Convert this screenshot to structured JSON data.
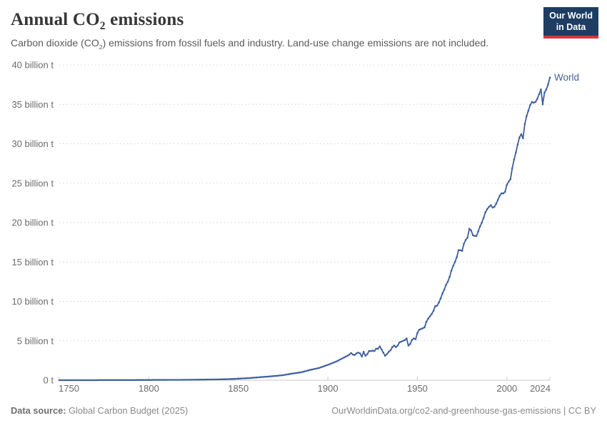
{
  "header": {
    "title_pre": "Annual CO",
    "title_sub": "2",
    "title_post": " emissions",
    "subtitle_pre": "Carbon dioxide (CO",
    "subtitle_sub": "2",
    "subtitle_post": ") emissions from fossil fuels and industry. Land-use change emissions are not included.",
    "logo": {
      "line1": "Our World",
      "line2": "in Data",
      "bg_color": "#1d3d63",
      "accent_color": "#d93636"
    }
  },
  "footer": {
    "source_label": "Data source:",
    "source_value": " Global Carbon Budget (2025)",
    "citation": "OurWorldinData.org/co2-and-greenhouse-gas-emissions | CC BY"
  },
  "chart_data": {
    "type": "line",
    "title": "Annual CO₂ emissions",
    "unit": "billion t",
    "grid": "horizontal-dashed",
    "legend": "end-of-line-label",
    "xlim": [
      1750,
      2024
    ],
    "ylim": [
      0,
      40
    ],
    "xtick_values": [
      1750,
      1800,
      1850,
      1900,
      1950,
      2000,
      2024
    ],
    "xtick_labels": [
      "1750",
      "1800",
      "1850",
      "1900",
      "1950",
      "2000",
      "2024"
    ],
    "ytick_values": [
      0,
      5,
      10,
      15,
      20,
      25,
      30,
      35,
      40
    ],
    "ytick_labels": [
      "0 t",
      "5 billion t",
      "10 billion t",
      "15 billion t",
      "20 billion t",
      "25 billion t",
      "30 billion t",
      "35 billion t",
      "40 billion t"
    ],
    "series": [
      {
        "name": "World",
        "color": "#3e5f9e",
        "x_start": 1750,
        "x_end": 2024,
        "x_step": 1,
        "values": [
          0.009,
          0.009,
          0.01,
          0.01,
          0.01,
          0.01,
          0.01,
          0.011,
          0.011,
          0.011,
          0.011,
          0.011,
          0.012,
          0.012,
          0.012,
          0.012,
          0.012,
          0.013,
          0.013,
          0.013,
          0.013,
          0.013,
          0.014,
          0.014,
          0.014,
          0.015,
          0.015,
          0.015,
          0.015,
          0.016,
          0.016,
          0.016,
          0.017,
          0.017,
          0.018,
          0.018,
          0.019,
          0.019,
          0.02,
          0.02,
          0.021,
          0.021,
          0.022,
          0.023,
          0.024,
          0.025,
          0.026,
          0.027,
          0.028,
          0.029,
          0.03,
          0.031,
          0.032,
          0.033,
          0.034,
          0.035,
          0.036,
          0.037,
          0.038,
          0.039,
          0.04,
          0.041,
          0.042,
          0.043,
          0.044,
          0.045,
          0.046,
          0.047,
          0.049,
          0.05,
          0.051,
          0.053,
          0.055,
          0.057,
          0.059,
          0.061,
          0.063,
          0.066,
          0.068,
          0.071,
          0.073,
          0.076,
          0.079,
          0.082,
          0.086,
          0.09,
          0.094,
          0.098,
          0.102,
          0.106,
          0.11,
          0.116,
          0.122,
          0.129,
          0.136,
          0.144,
          0.153,
          0.163,
          0.174,
          0.185,
          0.197,
          0.209,
          0.222,
          0.235,
          0.248,
          0.261,
          0.276,
          0.292,
          0.308,
          0.324,
          0.34,
          0.358,
          0.376,
          0.394,
          0.412,
          0.43,
          0.45,
          0.47,
          0.49,
          0.51,
          0.53,
          0.552,
          0.574,
          0.596,
          0.618,
          0.64,
          0.68,
          0.72,
          0.76,
          0.8,
          0.84,
          0.872,
          0.904,
          0.936,
          0.968,
          1.0,
          1.06,
          1.12,
          1.18,
          1.24,
          1.3,
          1.35,
          1.4,
          1.45,
          1.5,
          1.55,
          1.63,
          1.71,
          1.79,
          1.87,
          1.95,
          2.04,
          2.13,
          2.22,
          2.31,
          2.4,
          2.52,
          2.64,
          2.76,
          2.88,
          3.0,
          3.1,
          3.25,
          3.45,
          3.25,
          3.2,
          3.4,
          3.5,
          3.4,
          3.0,
          3.6,
          3.1,
          3.3,
          3.7,
          3.7,
          3.75,
          3.7,
          4.0,
          4.0,
          4.3,
          3.9,
          3.5,
          3.1,
          3.3,
          3.6,
          3.8,
          4.2,
          4.4,
          4.2,
          4.4,
          4.8,
          4.9,
          5.0,
          5.1,
          5.3,
          4.4,
          4.6,
          5.1,
          5.3,
          5.2,
          6.0,
          6.4,
          6.5,
          6.6,
          6.7,
          7.4,
          7.8,
          8.1,
          8.4,
          8.8,
          9.4,
          9.45,
          9.85,
          10.4,
          11.0,
          11.5,
          12.1,
          12.5,
          13.1,
          13.9,
          14.5,
          15.0,
          15.6,
          16.5,
          16.5,
          16.4,
          17.3,
          17.8,
          18.1,
          19.2,
          19.0,
          18.4,
          18.3,
          18.3,
          18.9,
          19.5,
          20.0,
          20.6,
          21.3,
          21.7,
          22.0,
          22.2,
          21.9,
          22.0,
          22.4,
          22.9,
          23.4,
          23.7,
          23.7,
          23.9,
          24.8,
          25.2,
          25.5,
          26.9,
          28.0,
          28.9,
          29.9,
          30.8,
          31.2,
          30.7,
          32.5,
          33.5,
          34.2,
          34.9,
          35.3,
          35.2,
          35.3,
          35.7,
          36.3,
          36.9,
          35.0,
          36.5,
          36.9,
          37.5,
          38.4
        ]
      }
    ]
  }
}
